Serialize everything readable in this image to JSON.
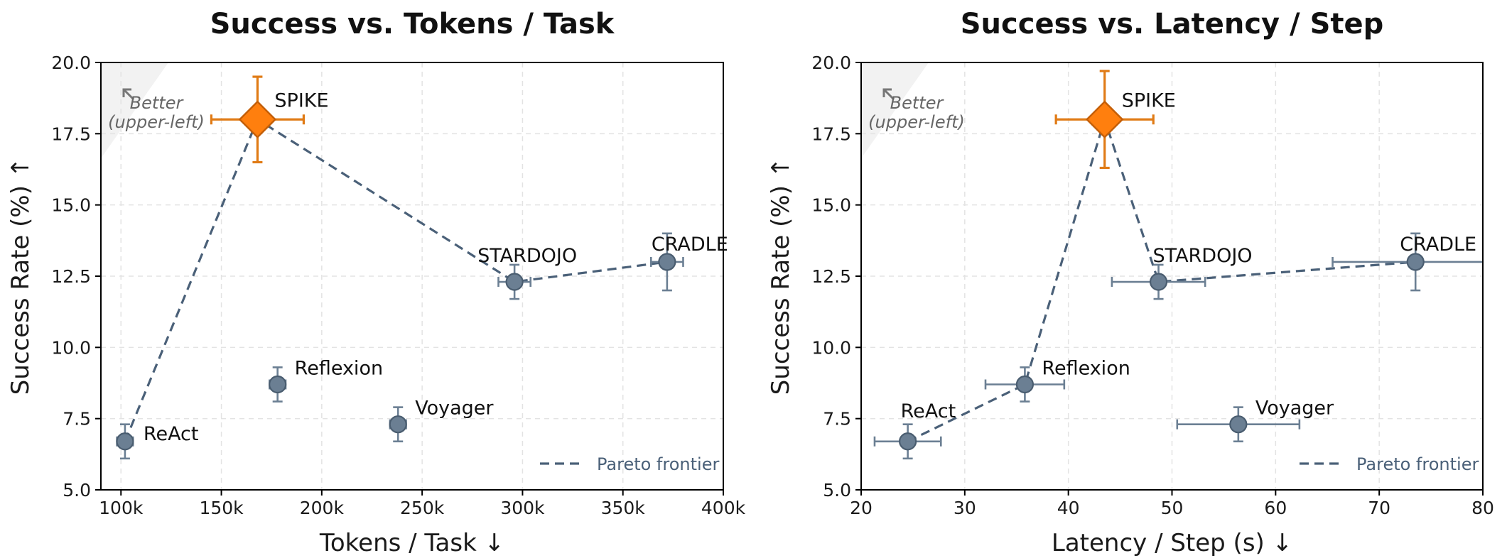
{
  "chart_data": [
    {
      "type": "scatter",
      "title": "Success vs. Tokens / Task",
      "xlabel": "Tokens / Task ↓",
      "ylabel": "Success Rate (%) ↑",
      "xlim": [
        90000,
        400000
      ],
      "ylim": [
        5.0,
        20.0
      ],
      "xticks": [
        100000,
        150000,
        200000,
        250000,
        300000,
        350000,
        400000
      ],
      "xtick_labels": [
        "100k",
        "150k",
        "200k",
        "250k",
        "300k",
        "350k",
        "400k"
      ],
      "yticks": [
        5.0,
        7.5,
        10.0,
        12.5,
        15.0,
        17.5,
        20.0
      ],
      "ytick_labels": [
        "5.0",
        "7.5",
        "10.0",
        "12.5",
        "15.0",
        "17.5",
        "20.0"
      ],
      "grid": true,
      "legend": {
        "label": "Pareto frontier",
        "placement": "lower-right"
      },
      "annotation": {
        "line1": "Better",
        "line2": "(upper-left)",
        "placement": "upper-left"
      },
      "colors": {
        "highlight": "#ff7f0e",
        "highlight_err": "#e07b16",
        "point": "#6b7f93",
        "point_edge": "#4a5d70",
        "frontier": "#4a6078"
      },
      "points": [
        {
          "name": "ReAct",
          "x": 102000,
          "y": 6.7,
          "xerr": 4000,
          "yerr": 0.6,
          "highlight": false
        },
        {
          "name": "SPIKE",
          "x": 168000,
          "y": 18.0,
          "xerr": 23000,
          "yerr": 1.5,
          "highlight": true
        },
        {
          "name": "Reflexion",
          "x": 178000,
          "y": 8.7,
          "xerr": 4000,
          "yerr": 0.6,
          "highlight": false
        },
        {
          "name": "Voyager",
          "x": 238000,
          "y": 7.3,
          "xerr": 4000,
          "yerr": 0.6,
          "highlight": false
        },
        {
          "name": "STARDOJO",
          "x": 296000,
          "y": 12.3,
          "xerr": 8000,
          "yerr": 0.6,
          "highlight": false
        },
        {
          "name": "CRADLE",
          "x": 372000,
          "y": 13.0,
          "xerr": 8000,
          "yerr": 1.0,
          "highlight": false
        }
      ],
      "frontier": [
        "ReAct",
        "SPIKE",
        "STARDOJO",
        "CRADLE"
      ]
    },
    {
      "type": "scatter",
      "title": "Success vs. Latency / Step",
      "xlabel": "Latency / Step (s) ↓",
      "ylabel": "Success Rate (%) ↑",
      "xlim": [
        20,
        80
      ],
      "ylim": [
        5.0,
        20.0
      ],
      "xticks": [
        20,
        30,
        40,
        50,
        60,
        70,
        80
      ],
      "xtick_labels": [
        "20",
        "30",
        "40",
        "50",
        "60",
        "70",
        "80"
      ],
      "yticks": [
        5.0,
        7.5,
        10.0,
        12.5,
        15.0,
        17.5,
        20.0
      ],
      "ytick_labels": [
        "5.0",
        "7.5",
        "10.0",
        "12.5",
        "15.0",
        "17.5",
        "20.0"
      ],
      "grid": true,
      "legend": {
        "label": "Pareto frontier",
        "placement": "lower-right"
      },
      "annotation": {
        "line1": "Better",
        "line2": "(upper-left)",
        "placement": "upper-left"
      },
      "colors": {
        "highlight": "#ff7f0e",
        "highlight_err": "#e07b16",
        "point": "#6b7f93",
        "point_edge": "#4a5d70",
        "frontier": "#4a6078"
      },
      "points": [
        {
          "name": "ReAct",
          "x": 24.5,
          "y": 6.7,
          "xerr": 3.2,
          "yerr": 0.6,
          "highlight": false
        },
        {
          "name": "Reflexion",
          "x": 35.8,
          "y": 8.7,
          "xerr": 3.8,
          "yerr": 0.6,
          "highlight": false
        },
        {
          "name": "SPIKE",
          "x": 43.5,
          "y": 18.0,
          "xerr": 4.7,
          "yerr": 1.7,
          "highlight": true
        },
        {
          "name": "STARDOJO",
          "x": 48.7,
          "y": 12.3,
          "xerr": 4.5,
          "yerr": 0.6,
          "highlight": false
        },
        {
          "name": "Voyager",
          "x": 56.4,
          "y": 7.3,
          "xerr": 5.9,
          "yerr": 0.6,
          "highlight": false
        },
        {
          "name": "CRADLE",
          "x": 73.5,
          "y": 13.0,
          "xerr": 8.0,
          "yerr": 1.0,
          "highlight": false
        }
      ],
      "frontier": [
        "ReAct",
        "Reflexion",
        "SPIKE",
        "STARDOJO",
        "CRADLE"
      ]
    }
  ]
}
